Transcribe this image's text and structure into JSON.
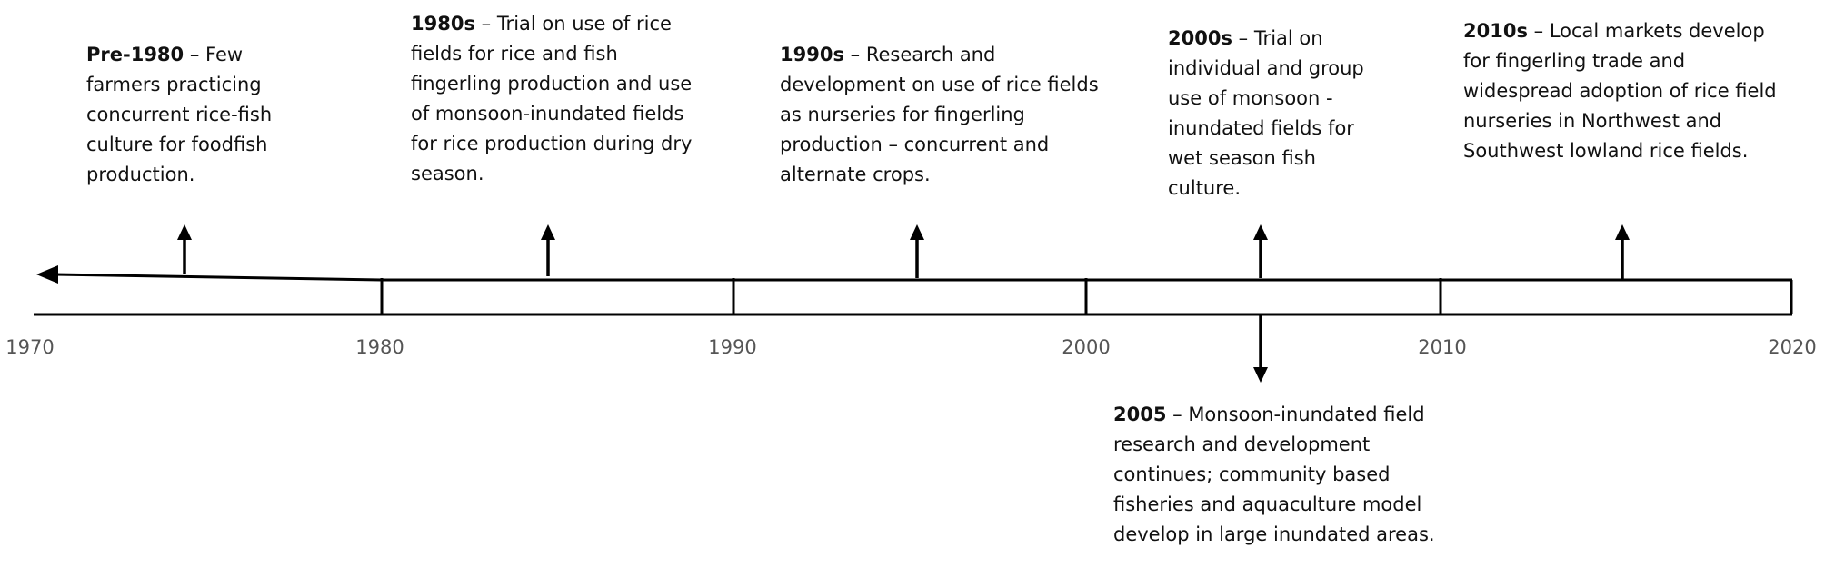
{
  "timeline": {
    "axis_labels": [
      "1970",
      "1980",
      "1990",
      "2000",
      "2010",
      "2020"
    ],
    "events": [
      {
        "id": "pre-1980",
        "label": "Pre-1980",
        "text": "– Few farmers practicing concurrent rice-fish culture for foodfish production."
      },
      {
        "id": "1980s",
        "label": "1980s",
        "text": "– Trial on use of rice fields for rice and fish fingerling production and use of monsoon-inundated fields for rice production during dry season."
      },
      {
        "id": "1990s",
        "label": "1990s",
        "text": "– Research and development on use of rice fields as nurseries for fingerling production – concurrent and alternate crops."
      },
      {
        "id": "2000s",
        "label": "2000s",
        "text": "– Trial on individual and group use of monsoon - inundated fields for wet season fish culture."
      },
      {
        "id": "2010s",
        "label": "2010s",
        "text": "– Local markets develop for fingerling trade and widespread adoption of rice field nurseries in Northwest and Southwest lowland rice fields."
      },
      {
        "id": "2005",
        "label": "2005",
        "text": "– Monsoon-inundated field research and development continues; community based fisheries and aquaculture model develop in large inundated areas."
      }
    ]
  }
}
